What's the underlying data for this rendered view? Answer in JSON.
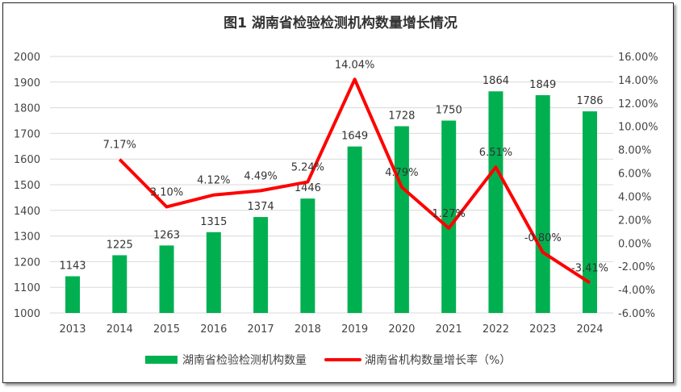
{
  "chart_data": {
    "type": "bar+line",
    "title": "图1 湖南省检验检测机构数量增长情况",
    "categories": [
      "2013",
      "2014",
      "2015",
      "2016",
      "2017",
      "2018",
      "2019",
      "2020",
      "2021",
      "2022",
      "2023",
      "2024"
    ],
    "series": [
      {
        "name": "湖南省检验检测机构数量",
        "type": "bar",
        "axis": "left",
        "color": "#00B050",
        "values": [
          1143,
          1225,
          1263,
          1315,
          1374,
          1446,
          1649,
          1728,
          1750,
          1864,
          1849,
          1786
        ],
        "labels": [
          "1143",
          "1225",
          "1263",
          "1315",
          "1374",
          "1446",
          "1649",
          "1728",
          "1750",
          "1864",
          "1849",
          "1786"
        ]
      },
      {
        "name": "湖南省机构数量增长率（%）",
        "type": "line",
        "axis": "right",
        "color": "#FF0000",
        "values": [
          null,
          7.17,
          3.1,
          4.12,
          4.49,
          5.24,
          14.04,
          4.79,
          1.27,
          6.51,
          -0.8,
          -3.41
        ],
        "labels": [
          "",
          "7.17%",
          "3.10%",
          "4.12%",
          "4.49%",
          "5.24%",
          "14.04%",
          "4.79%",
          "1.27%",
          "6.51%",
          "-0.80%",
          "-3.41%"
        ]
      }
    ],
    "y_left": {
      "min": 1000,
      "max": 2000,
      "step": 100,
      "ticks": [
        "1000",
        "1100",
        "1200",
        "1300",
        "1400",
        "1500",
        "1600",
        "1700",
        "1800",
        "1900",
        "2000"
      ]
    },
    "y_right": {
      "min": -6,
      "max": 16,
      "step": 2,
      "ticks": [
        "-6.00%",
        "-4.00%",
        "-2.00%",
        "0.00%",
        "2.00%",
        "4.00%",
        "6.00%",
        "8.00%",
        "10.00%",
        "12.00%",
        "14.00%",
        "16.00%"
      ]
    },
    "grid": true,
    "legend_position": "bottom"
  }
}
